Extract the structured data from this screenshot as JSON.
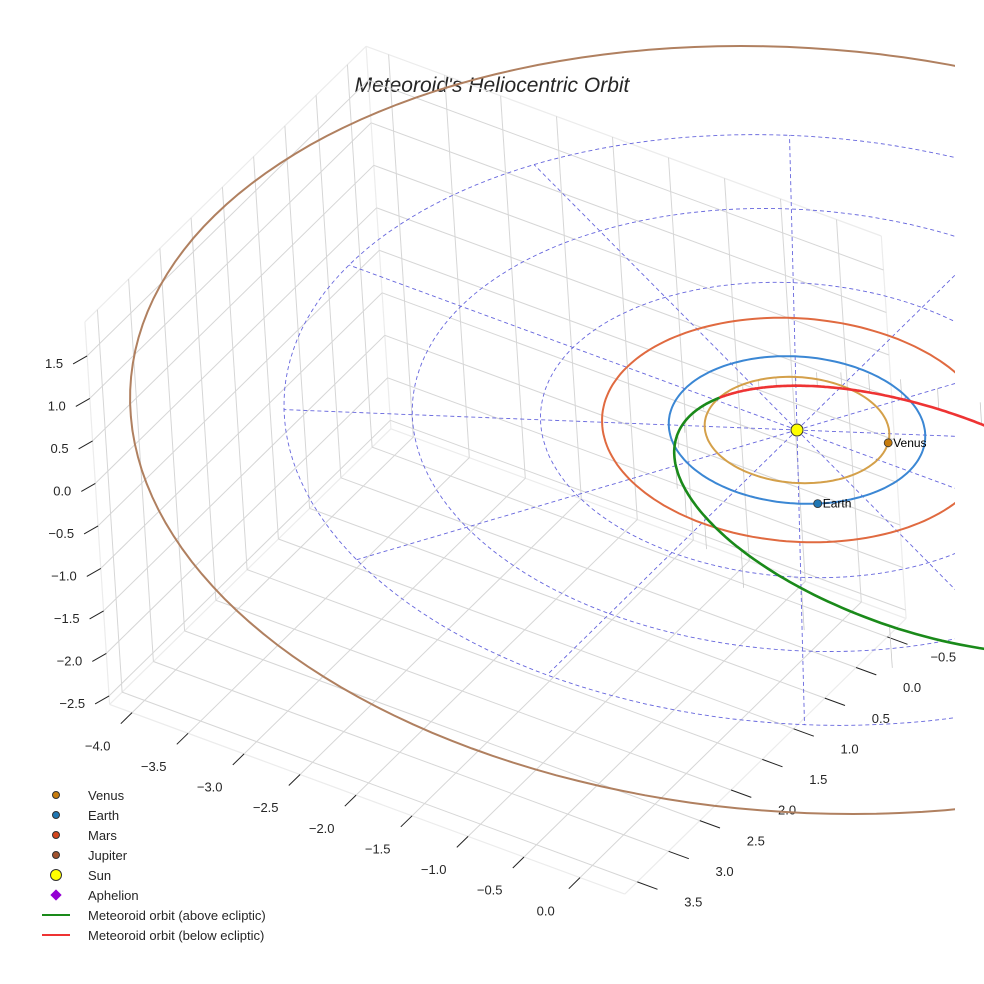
{
  "chart_data": {
    "type": "3d-line",
    "title": "Meteoroid's Heliocentric Orbit",
    "axes": {
      "x": {
        "ticks": [
          -4.0,
          -3.5,
          -3.0,
          -2.5,
          -2.0,
          -1.5,
          -1.0,
          -0.5,
          0.0
        ],
        "tick_labels": [
          "−4.0",
          "−3.5",
          "−3.0",
          "−2.5",
          "−2.0",
          "−1.5",
          "−1.0",
          "−0.5",
          "0.0"
        ],
        "range": [
          -4.2,
          0.4
        ]
      },
      "y": {
        "ticks": [
          -0.5,
          0.0,
          0.5,
          1.0,
          1.5,
          2.0,
          2.5,
          3.0,
          3.5
        ],
        "tick_labels": [
          "−0.5",
          "0.0",
          "0.5",
          "1.0",
          "1.5",
          "2.0",
          "2.5",
          "3.0",
          "3.5"
        ],
        "range": [
          -0.8,
          3.7
        ]
      },
      "z": {
        "ticks": [
          -2.5,
          -2.0,
          -1.5,
          -1.0,
          -0.5,
          0.0,
          0.5,
          1.0,
          1.5
        ],
        "tick_labels": [
          "−2.5",
          "−2.0",
          "−1.5",
          "−1.0",
          "−0.5",
          "0.0",
          "0.5",
          "1.0",
          "1.5"
        ],
        "range": [
          -2.6,
          1.9
        ]
      },
      "grid": true
    },
    "planets": [
      {
        "name": "Venus",
        "orbit_radius_au": 0.72,
        "color": "#d4a04a",
        "marker_color": "#c77c0e",
        "label": "Venus"
      },
      {
        "name": "Earth",
        "orbit_radius_au": 1.0,
        "color": "#3b87d4",
        "marker_color": "#1f77b4",
        "label": "Earth"
      },
      {
        "name": "Mars",
        "orbit_radius_au": 1.52,
        "color": "#e06a40",
        "marker_color": "#d2461c"
      },
      {
        "name": "Jupiter",
        "orbit_radius_au": 5.2,
        "color": "#b08060",
        "marker_color": "#a0522d"
      }
    ],
    "sun": {
      "x": 0,
      "y": 0,
      "z": 0,
      "color": "#ffff00"
    },
    "meteoroid_orbit": {
      "perihelion_au": 0.7,
      "aphelion_au": 3.9,
      "above_color": "#1a8a1a",
      "below_color": "#ee3333"
    },
    "aphelion": {
      "color": "#9400d3"
    },
    "ecliptic_grid": {
      "rings_au": [
        1,
        2,
        3,
        4
      ],
      "spokes": 12,
      "color": "#6666dd"
    },
    "legend": {
      "placement": "bottom-left",
      "entries": [
        {
          "label": "Venus",
          "kind": "dot",
          "color": "#c77c0e"
        },
        {
          "label": "Earth",
          "kind": "dot",
          "color": "#1f77b4"
        },
        {
          "label": "Mars",
          "kind": "dot",
          "color": "#d2461c"
        },
        {
          "label": "Jupiter",
          "kind": "dot",
          "color": "#a0522d"
        },
        {
          "label": "Sun",
          "kind": "sun",
          "color": "#ffff00"
        },
        {
          "label": "Aphelion",
          "kind": "diamond",
          "color": "#9400d3"
        },
        {
          "label": "Meteoroid orbit (above ecliptic)",
          "kind": "line",
          "color": "#1a8a1a"
        },
        {
          "label": "Meteoroid orbit (below ecliptic)",
          "kind": "line",
          "color": "#ee3333"
        }
      ]
    }
  }
}
